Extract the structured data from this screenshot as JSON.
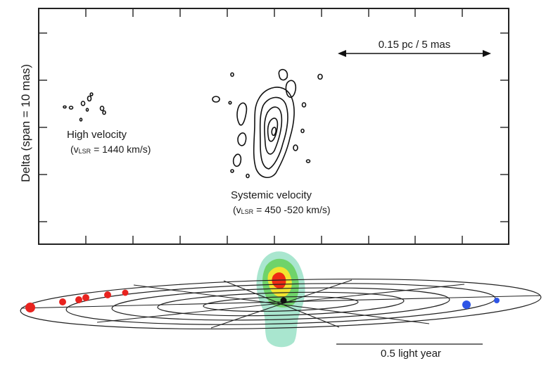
{
  "panel": {
    "ylabel": "Delta (span = 10 mas)",
    "scale_bar_label": "0.15 pc / 5 mas",
    "high_velocity": {
      "title": "High velocity",
      "prefix": "(v",
      "subscript": "LSR",
      "value": " = 1440 km/s)"
    },
    "systemic_velocity": {
      "title": "Systemic velocity",
      "prefix": "(v",
      "subscript": "LSR",
      "value": " = 450 -520 km/s)"
    }
  },
  "disk": {
    "scale_bar_label": "0.5 light year",
    "colors": {
      "redshifted": "#e8231f",
      "blueshifted": "#2f56e6",
      "core": "#ee2b14",
      "halo_inner": "#f2e430",
      "halo_mid": "#6fd36a",
      "halo_outer": "#a9e6cf"
    }
  }
}
